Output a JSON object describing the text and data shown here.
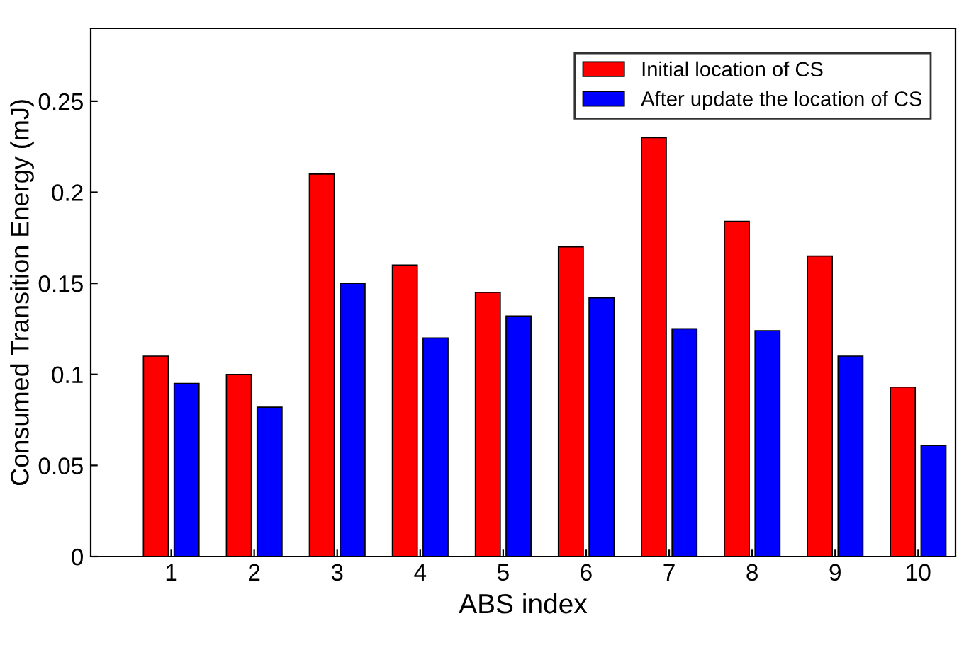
{
  "chart_data": {
    "type": "bar",
    "xlabel": "ABS index",
    "ylabel": "Consumed Transition Energy (mJ)",
    "categories": [
      "1",
      "2",
      "3",
      "4",
      "5",
      "6",
      "7",
      "8",
      "9",
      "10"
    ],
    "series": [
      {
        "name": "Initial location of CS",
        "color": "#ff0000",
        "values": [
          0.11,
          0.1,
          0.21,
          0.16,
          0.145,
          0.17,
          0.23,
          0.184,
          0.165,
          0.093
        ]
      },
      {
        "name": "After update the location of CS",
        "color": "#0000ff",
        "values": [
          0.095,
          0.082,
          0.15,
          0.12,
          0.132,
          0.142,
          0.125,
          0.124,
          0.11,
          0.061
        ]
      }
    ],
    "ylim": [
      0,
      0.29
    ],
    "yticks": [
      0,
      0.05,
      0.1,
      0.15,
      0.2,
      0.25
    ],
    "grid": false,
    "legend": "top right"
  }
}
